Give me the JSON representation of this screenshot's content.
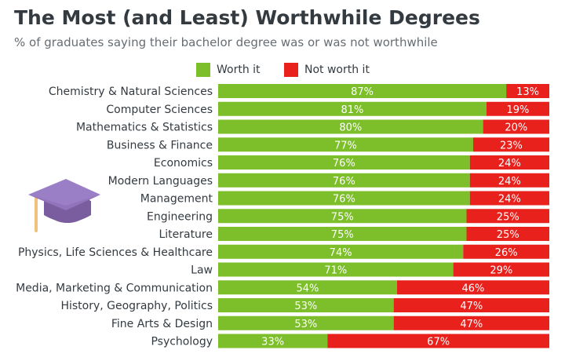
{
  "header": {
    "title": "The Most (and Least) Worthwhile Degrees",
    "subtitle": "% of graduates saying their bachelor degree was or was not worthwhile"
  },
  "legend": {
    "worth": "Worth it",
    "not_worth": "Not worth it"
  },
  "colors": {
    "worth": "#7cbf2a",
    "not_worth": "#e8211c",
    "text": "#333a40"
  },
  "icons": [
    "graduation-cap-icon"
  ],
  "chart_data": {
    "type": "bar",
    "orientation": "horizontal",
    "stacked": true,
    "categories": [
      "Chemistry & Natural Sciences",
      "Computer Sciences",
      "Mathematics & Statistics",
      "Business & Finance",
      "Economics",
      "Modern Languages",
      "Management",
      "Engineering",
      "Literature",
      "Physics, Life Sciences & Healthcare",
      "Law",
      "Media, Marketing & Communication",
      "History, Geography, Politics",
      "Fine Arts & Design",
      "Psychology"
    ],
    "series": [
      {
        "name": "Worth it",
        "values": [
          87,
          81,
          80,
          77,
          76,
          76,
          76,
          75,
          75,
          74,
          71,
          54,
          53,
          53,
          33
        ]
      },
      {
        "name": "Not worth it",
        "values": [
          13,
          19,
          20,
          23,
          24,
          24,
          24,
          25,
          25,
          26,
          29,
          46,
          47,
          47,
          67
        ]
      }
    ],
    "value_suffix": "%",
    "xlim": [
      0,
      100
    ],
    "legend_position": "top",
    "grid": false
  }
}
